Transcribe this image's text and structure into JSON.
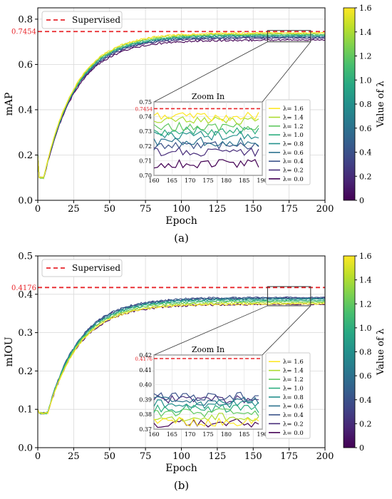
{
  "chart_data": [
    {
      "id": "a",
      "type": "line",
      "caption": "(a)",
      "xlabel": "Epoch",
      "ylabel": "mAP",
      "xlim": [
        0,
        200
      ],
      "ylim": [
        0,
        0.85
      ],
      "xticks": [
        "0",
        "25",
        "50",
        "75",
        "100",
        "125",
        "150",
        "175",
        "200"
      ],
      "yticks": [
        "0.0",
        "0.2",
        "0.4",
        "0.6",
        "0.8"
      ],
      "grid": true,
      "legend": {
        "position": "top-left",
        "label": "Supervised"
      },
      "reference_line": {
        "value": 0.7454,
        "label": "0.7454",
        "name": "Supervised",
        "color": "#e8262b"
      },
      "colorbar": {
        "label": "Value of λ",
        "min": 0,
        "max": 1.6,
        "ticks": [
          "0",
          "0.2",
          "0.4",
          "0.6",
          "0.8",
          "1.0",
          "1.2",
          "1.4",
          "1.6"
        ]
      },
      "lambdas": [
        1.6,
        1.4,
        1.2,
        1.0,
        0.8,
        0.6,
        0.4,
        0.2,
        0.0
      ],
      "series_labels": [
        "λ= 1.6",
        "λ= 1.4",
        "λ= 1.2",
        "λ= 1.0",
        "λ= 0.8",
        "λ= 0.6",
        "λ= 0.4",
        "λ= 0.2",
        "λ= 0.0"
      ],
      "series_final": [
        0.74,
        0.737,
        0.733,
        0.73,
        0.727,
        0.723,
        0.72,
        0.716,
        0.708
      ],
      "series_start": 0.2,
      "series_min": 0.1,
      "zoom": {
        "title": "Zoom In",
        "xlim": [
          160,
          190
        ],
        "ylim": [
          0.7,
          0.75
        ],
        "xticks": [
          "160",
          "165",
          "170",
          "175",
          "180",
          "185",
          "190"
        ],
        "yticks": [
          "0.70",
          "0.71",
          "0.72",
          "0.73",
          "0.74",
          "0.75"
        ],
        "ref_label": "0.7454"
      }
    },
    {
      "id": "b",
      "type": "line",
      "caption": "(b)",
      "xlabel": "Epoch",
      "ylabel": "mIOU",
      "xlim": [
        0,
        200
      ],
      "ylim": [
        0,
        0.5
      ],
      "xticks": [
        "0",
        "25",
        "50",
        "75",
        "100",
        "125",
        "150",
        "175",
        "200"
      ],
      "yticks": [
        "0.0",
        "0.1",
        "0.2",
        "0.3",
        "0.4",
        "0.5"
      ],
      "grid": true,
      "legend": {
        "position": "top-left",
        "label": "Supervised"
      },
      "reference_line": {
        "value": 0.4176,
        "label": "0.4176",
        "name": "Supervised",
        "color": "#e8262b"
      },
      "colorbar": {
        "label": "Value of λ",
        "min": 0,
        "max": 1.6,
        "ticks": [
          "0",
          "0.2",
          "0.4",
          "0.6",
          "0.8",
          "1.0",
          "1.2",
          "1.4",
          "1.6"
        ]
      },
      "lambdas": [
        1.6,
        1.4,
        1.2,
        1.0,
        0.8,
        0.6,
        0.4,
        0.2,
        0.0
      ],
      "series_labels": [
        "λ= 1.6",
        "λ= 1.4",
        "λ= 1.2",
        "λ= 1.0",
        "λ= 0.8",
        "λ= 0.6",
        "λ= 0.4",
        "λ= 0.2",
        "λ= 0.0"
      ],
      "series_final": [
        0.375,
        0.378,
        0.381,
        0.384,
        0.387,
        0.389,
        0.392,
        0.39,
        0.374
      ],
      "series_start": 0.1,
      "series_min": 0.09,
      "zoom": {
        "title": "Zoom In",
        "xlim": [
          160,
          190
        ],
        "ylim": [
          0.37,
          0.42
        ],
        "xticks": [
          "160",
          "165",
          "170",
          "175",
          "180",
          "185",
          "190"
        ],
        "yticks": [
          "0.37",
          "0.38",
          "0.39",
          "0.40",
          "0.41",
          "0.42"
        ],
        "ref_label": "0.4176"
      }
    }
  ]
}
